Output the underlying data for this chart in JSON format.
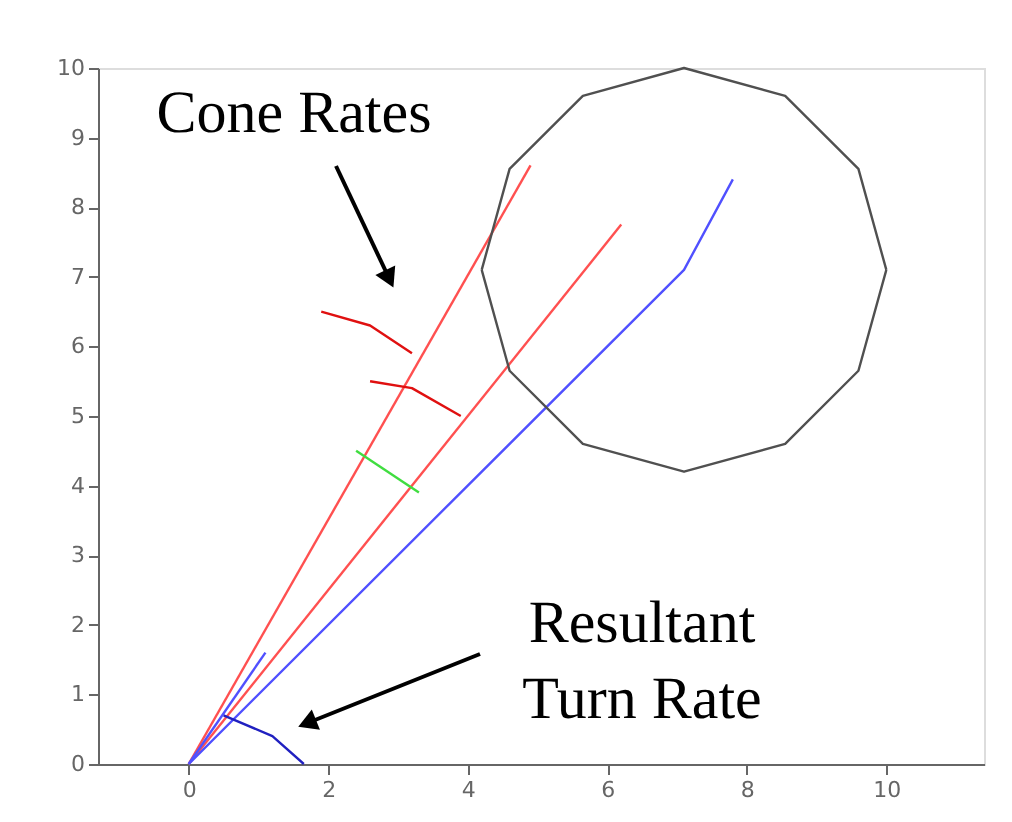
{
  "chart_data": {
    "type": "line",
    "xlim": [
      -1.3,
      11.4
    ],
    "ylim": [
      0,
      10
    ],
    "xticks": [
      0,
      2,
      4,
      6,
      8,
      10
    ],
    "yticks": [
      0,
      1,
      2,
      3,
      4,
      5,
      6,
      7,
      8,
      9,
      10
    ],
    "grid": false,
    "marker": "none",
    "line_style": "solid",
    "series": [
      {
        "color": "#ff5050",
        "x": [
          0,
          4.9
        ],
        "values": [
          0,
          8.6
        ]
      },
      {
        "color": "#ff5050",
        "x": [
          0,
          6.2
        ],
        "values": [
          0,
          7.75
        ]
      },
      {
        "color": "#5050ff",
        "x": [
          0,
          7.1,
          7.8
        ],
        "values": [
          0,
          7.1,
          8.4
        ]
      },
      {
        "color": "#5050ff",
        "x": [
          0,
          1.1
        ],
        "values": [
          0,
          1.6
        ]
      },
      {
        "color": "#40dd40",
        "x": [
          2.4,
          3.3
        ],
        "values": [
          4.5,
          3.9
        ]
      },
      {
        "color": "#505050",
        "x": [
          4.2,
          4.6,
          5.65,
          7.1,
          8.55,
          9.6,
          10.0
        ],
        "values": [
          7.1,
          8.55,
          9.6,
          10.0,
          9.6,
          8.55,
          7.1
        ]
      },
      {
        "color": "#505050",
        "x": [
          4.2,
          4.6,
          5.65,
          7.1,
          8.55,
          9.6,
          10.0
        ],
        "values": [
          7.1,
          5.65,
          4.6,
          4.2,
          4.6,
          5.65,
          7.1
        ]
      },
      {
        "color": "#e01010",
        "x": [
          3.2,
          2.6,
          1.9
        ],
        "values": [
          5.9,
          6.3,
          6.5
        ]
      },
      {
        "color": "#e01010",
        "x": [
          3.9,
          3.2,
          2.6
        ],
        "values": [
          5.0,
          5.4,
          5.5
        ]
      },
      {
        "color": "#2020c0",
        "x": [
          0.5,
          1.2,
          1.65
        ],
        "values": [
          0.7,
          0.4,
          0.0
        ]
      }
    ],
    "annotations": [
      "Cone Rates",
      "Resultant\nTurn Rate"
    ]
  }
}
